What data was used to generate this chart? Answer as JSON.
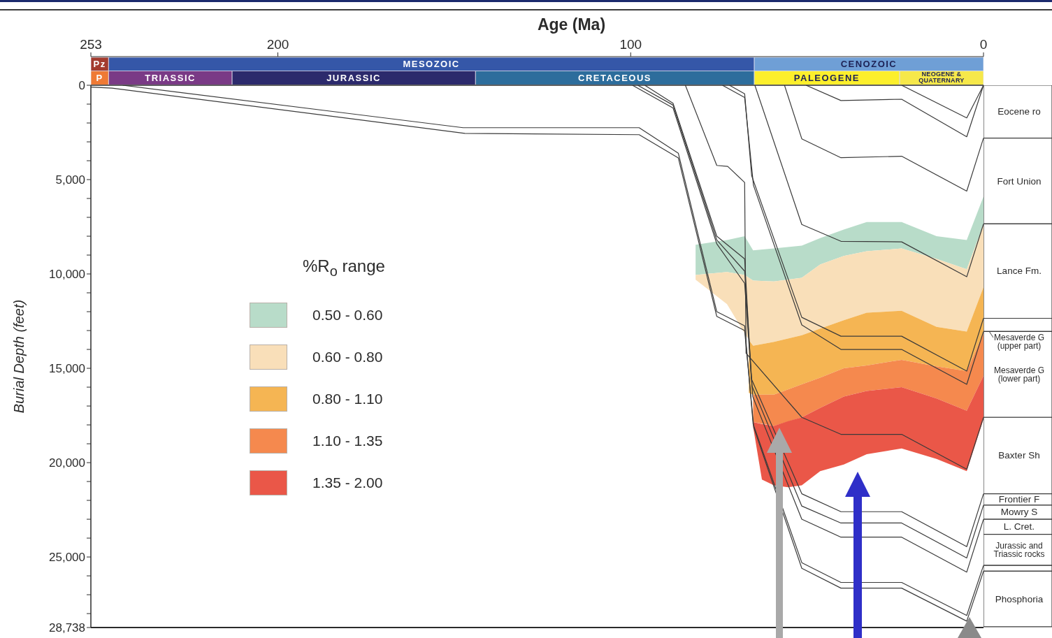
{
  "chart_data": [
    {
      "type": "line",
      "xlabel": "Age (Ma)",
      "ylabel": "Burial Depth (feet)",
      "legend_title": "%R$_{o}$ range",
      "legend": "left",
      "xlim": [
        253,
        0
      ],
      "ylim": [
        28738,
        0
      ],
      "xticks": [
        253,
        200,
        100,
        0
      ],
      "yticks": [
        0,
        {
          "value": 1000,
          "label": null
        },
        {
          "value": 2000,
          "label": null
        },
        {
          "value": 3000,
          "label": null
        },
        {
          "value": 4000,
          "label": null
        },
        {
          "value": 5000,
          "label": "5,000"
        },
        {
          "value": 6000,
          "label": null
        },
        {
          "value": 7000,
          "label": null
        },
        {
          "value": 8000,
          "label": null
        },
        {
          "value": 9000,
          "label": null
        },
        {
          "value": 10000,
          "label": "10,000"
        },
        {
          "value": 11000,
          "label": null
        },
        {
          "value": 12000,
          "label": null
        },
        {
          "value": 13000,
          "label": null
        },
        {
          "value": 14000,
          "label": null
        },
        {
          "value": 15000,
          "label": "15,000"
        },
        {
          "value": 16000,
          "label": null
        },
        {
          "value": 17000,
          "label": null
        },
        {
          "value": 18000,
          "label": null
        },
        {
          "value": 19000,
          "label": null
        },
        {
          "value": 20000,
          "label": "20,000"
        },
        {
          "value": 21000,
          "label": null
        },
        {
          "value": 22000,
          "label": null
        },
        {
          "value": 23000,
          "label": null
        },
        {
          "value": 24000,
          "label": null
        },
        {
          "value": 25000,
          "label": "25,000"
        },
        {
          "value": 26000,
          "label": null
        },
        {
          "value": 27000,
          "label": null
        },
        {
          "value": 28000,
          "label": null
        },
        {
          "value": 28738,
          "label": "28,738"
        }
      ],
      "series": [
        {
          "type": "area",
          "name": "0.50 - 0.60",
          "color": "#b8dcc9",
          "x": [
            81.6,
            72.7,
            67.7,
            65.3,
            59.4,
            51.5,
            46.3,
            39.6,
            33.1,
            23.2,
            13.3,
            4.75,
            0
          ],
          "values": [
            null,
            null,
            null,
            null,
            null,
            null,
            null,
            null,
            null,
            null,
            null,
            null,
            null
          ],
          "lower": [
            8450,
            8200,
            8000,
            8750,
            8650,
            8500,
            8100,
            7650,
            7250,
            7250,
            8000,
            8200,
            5900
          ],
          "upper": [
            10050,
            9900,
            10050,
            10350,
            10400,
            10200,
            9500,
            9050,
            8800,
            8650,
            9200,
            9750,
            7400
          ]
        },
        {
          "type": "area",
          "name": "0.60 - 0.80",
          "color": "#f9dfb9",
          "x": [
            81.6,
            72.7,
            67.7,
            65.3,
            59.4,
            51.5,
            46.3,
            39.6,
            33.1,
            23.2,
            13.3,
            4.75,
            0
          ],
          "values": [
            null,
            null,
            null,
            null,
            null,
            null,
            null,
            null,
            null,
            null,
            null,
            null,
            null
          ],
          "lower": [
            10050,
            9900,
            10050,
            10350,
            10400,
            10200,
            9500,
            9050,
            8800,
            8650,
            9200,
            9750,
            7400
          ],
          "upper": [
            10300,
            11600,
            13150,
            13800,
            13600,
            13250,
            12900,
            12450,
            12050,
            11950,
            12800,
            13050,
            10700
          ]
        },
        {
          "type": "area",
          "name": "0.80 - 1.10",
          "color": "#f5b553",
          "x": [
            66.5,
            65.3,
            59.4,
            51.5,
            46.3,
            39.6,
            33.1,
            23.2,
            13.3,
            4.75,
            0
          ],
          "values": [
            null,
            null,
            null,
            null,
            null,
            null,
            null,
            null,
            null,
            null,
            null
          ],
          "lower": [
            13500,
            13800,
            13600,
            13250,
            12900,
            12450,
            12050,
            11950,
            12800,
            13050,
            10700
          ],
          "upper": [
            16300,
            16400,
            16400,
            15850,
            15500,
            15000,
            14850,
            14550,
            14900,
            15150,
            13150
          ]
        },
        {
          "type": "area",
          "name": "1.10 - 1.35",
          "color": "#f5894e",
          "x": [
            65.3,
            59.4,
            51.5,
            46.3,
            39.6,
            33.1,
            23.2,
            13.3,
            4.75,
            0
          ],
          "values": [
            null,
            null,
            null,
            null,
            null,
            null,
            null,
            null,
            null,
            null
          ],
          "lower": [
            16400,
            16400,
            15850,
            15500,
            15000,
            14850,
            14550,
            14900,
            15150,
            13150
          ],
          "upper": [
            17850,
            18050,
            17600,
            17100,
            16500,
            16200,
            16000,
            16600,
            17250,
            15400
          ]
        },
        {
          "type": "area",
          "name": "1.35 - 2.00",
          "color": "#ea5748",
          "x": [
            65.3,
            62.8,
            59.4,
            55.4,
            51.5,
            46.3,
            39.6,
            33.1,
            23.2,
            13.3,
            4.75,
            0
          ],
          "values": [
            null,
            null,
            null,
            null,
            null,
            null,
            null,
            null,
            null,
            null,
            null,
            null
          ],
          "lower": [
            17850,
            17950,
            18050,
            17800,
            17600,
            17100,
            16500,
            16200,
            16000,
            16600,
            17250,
            15400
          ],
          "upper": [
            18100,
            20900,
            21200,
            21300,
            21200,
            20450,
            20100,
            19550,
            19250,
            19800,
            20450,
            17700
          ]
        },
        {
          "color": "#3a3a3a",
          "x": [
            23.2,
            4.75,
            0
          ],
          "values": [
            0,
            1730,
            0
          ]
        },
        {
          "color": "#3a3a3a",
          "x": [
            50.3,
            40.4,
            23.2,
            4.75,
            0
          ],
          "values": [
            0,
            810,
            740,
            2730,
            0
          ]
        },
        {
          "color": "#3a3a3a",
          "x": [
            56.4,
            51.5,
            40.4,
            23.2,
            4.75,
            0
          ],
          "values": [
            0,
            2840,
            3840,
            3760,
            5610,
            2800
          ]
        },
        {
          "color": "#3a3a3a",
          "x": [
            64.8,
            51.5,
            40.4,
            23.2,
            4.75,
            0
          ],
          "values": [
            0,
            7380,
            8270,
            8300,
            10150,
            7350
          ]
        },
        {
          "color": "#3a3a3a",
          "x": [
            72,
            67.7,
            65.7,
            51.5,
            40.4,
            23.2,
            4.75,
            0
          ],
          "values": [
            0,
            450,
            4800,
            12300,
            13300,
            13300,
            15150,
            12350
          ]
        },
        {
          "color": "#3a3a3a",
          "x": [
            74,
            67.7,
            65.2,
            51.5,
            40.4,
            23.2,
            4.75,
            0
          ],
          "values": [
            0,
            650,
            5300,
            12700,
            14000,
            14000,
            15850,
            13050
          ]
        },
        {
          "color": "#3a3a3a",
          "x": [
            84.5,
            75.6,
            72.5,
            67.7,
            67.3,
            51.5,
            40.4,
            23.2,
            4.75,
            0
          ],
          "values": [
            0,
            4250,
            4300,
            5150,
            14200,
            17600,
            18500,
            18500,
            20350,
            17600
          ]
        },
        {
          "color": "#3a3a3a",
          "x": [
            96,
            88,
            75.6,
            67.7,
            65.8,
            51.5,
            40.4,
            23.2,
            4.75,
            0
          ],
          "values": [
            0,
            950,
            8000,
            9200,
            15550,
            21650,
            22600,
            22600,
            24450,
            21650
          ]
        },
        {
          "color": "#3a3a3a",
          "x": [
            98,
            88,
            75.6,
            67.7,
            65.6,
            51.5,
            40.4,
            23.2,
            4.75,
            0
          ],
          "values": [
            0,
            1050,
            8200,
            9850,
            15950,
            22300,
            23200,
            23200,
            25050,
            22250
          ]
        },
        {
          "color": "#3a3a3a",
          "x": [
            99.5,
            88,
            75.6,
            67.7,
            65.4,
            51.5,
            40.4,
            23.2,
            4.75,
            0
          ],
          "values": [
            0,
            1200,
            8400,
            10500,
            16500,
            23000,
            23950,
            23950,
            25800,
            23000
          ]
        },
        {
          "color": "#3a3a3a",
          "x": [
            244,
            147.5,
            97.6,
            86.5,
            75.6,
            67.7,
            65.3,
            51.5,
            40.4,
            23.2,
            4.75,
            0
          ],
          "values": [
            0,
            2250,
            2250,
            3600,
            12000,
            12750,
            17950,
            25300,
            26350,
            26350,
            28100,
            25450
          ]
        },
        {
          "color": "#3a3a3a",
          "x": [
            253,
            247,
            147,
            97.6,
            86.5,
            75.6,
            67.7,
            65.1,
            51.5,
            40.4,
            23.2,
            4.75,
            0
          ],
          "values": [
            100,
            150,
            2550,
            2620,
            3850,
            12250,
            13000,
            18150,
            25600,
            26650,
            26650,
            28400,
            25750
          ]
        }
      ]
    },
    {
      "type": "bar",
      "orientation": "horizontal",
      "stacked": true,
      "categories": [
        null,
        null
      ],
      "xlim": [
        253,
        0
      ],
      "tick_labels": false,
      "series": [
        {
          "name": "CENOZOIC",
          "color": "#6f9fd6",
          "values": [
            65,
            null
          ]
        },
        {
          "name": "MESOZOIC",
          "color": "#3557a8",
          "values": [
            183,
            null
          ]
        },
        {
          "name": "Pz",
          "color": "#a33b2e",
          "values": [
            5,
            null
          ]
        },
        {
          "name": "NEOGENE & QUATERNARY",
          "color": "#f6e84a",
          "values": [
            null,
            23.8
          ]
        },
        {
          "name": "PALEOGENE",
          "color": "#fcef2c",
          "values": [
            null,
            41.2
          ]
        },
        {
          "name": "CRETACEOUS",
          "color": "#2d6d9c",
          "values": [
            null,
            79
          ]
        },
        {
          "name": "JURASSIC",
          "color": "#2c2a6c",
          "values": [
            null,
            69
          ]
        },
        {
          "name": "TRIASSIC",
          "color": "#7a3a86",
          "values": [
            null,
            35
          ]
        },
        {
          "name": "P",
          "color": "#ef7a35",
          "values": [
            null,
            5
          ]
        }
      ]
    },
    {
      "type": "bar",
      "stacked": true,
      "categories": [
        null
      ],
      "ylim": [
        28738,
        0
      ],
      "tick_labels": false,
      "series": [
        {
          "name": "Eocene ro",
          "color": "#ffffff",
          "values": [
            2800
          ]
        },
        {
          "name": "Fort Union",
          "color": "#ffffff",
          "values": [
            4550
          ]
        },
        {
          "name": "Lance Fm.",
          "color": "#ffffff",
          "values": [
            5000
          ]
        },
        {
          "name": "Mesaverde G (upper part)",
          "color": "#ffffff",
          "values": [
            700
          ]
        },
        {
          "name": "Mesaverde G (lower part)",
          "color": "#ffffff",
          "values": [
            4550
          ]
        },
        {
          "name": "Baxter Sh",
          "color": "#ffffff",
          "values": [
            4050
          ]
        },
        {
          "name": "Frontier F",
          "color": "#ffffff",
          "values": [
            600
          ]
        },
        {
          "name": "Mowry S",
          "color": "#ffffff",
          "values": [
            750
          ]
        },
        {
          "name": "L. Cret.",
          "color": "#ffffff",
          "values": [
            800
          ]
        },
        {
          "name": "Jurassic and Triassic rocks",
          "color": "#ffffff",
          "values": [
            1650
          ]
        },
        {
          "color": "#ffffff",
          "values": [
            300
          ]
        },
        {
          "name": "Phosphoria",
          "color": "#ffffff",
          "values": [
            2950
          ]
        }
      ]
    }
  ]
}
